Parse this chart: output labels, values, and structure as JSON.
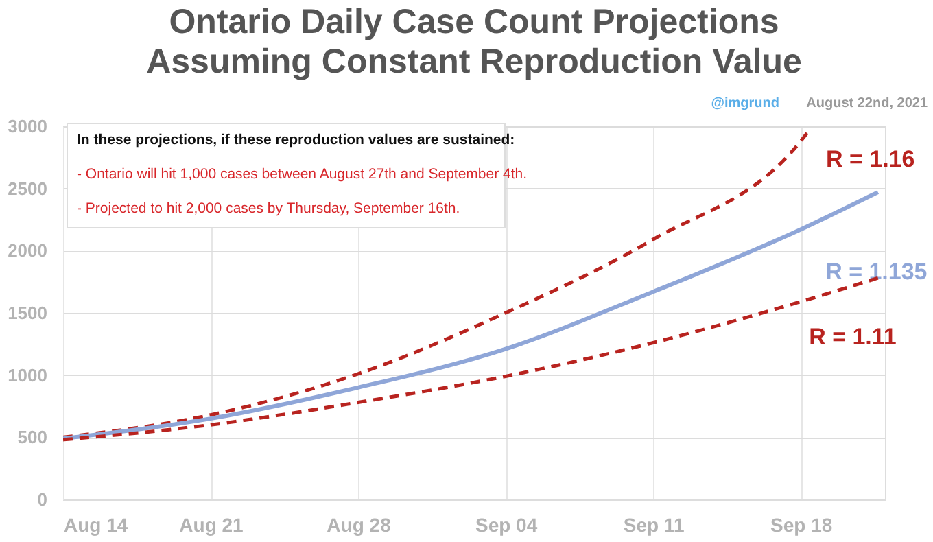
{
  "chart_data": {
    "type": "line",
    "title": [
      "Ontario Daily Case Count Projections",
      "Assuming Constant Reproduction Value"
    ],
    "annotations": [
      "In these projections, if these reproduction values are sustained:",
      "- Ontario will hit 1,000 cases between August 27th and September 4th.",
      "- Projected to hit 2,000 cases by Thursday, September 16th.",
      "@imgrund",
      "August 22nd, 2021"
    ],
    "xlim": [
      "2021-08-14",
      "2021-09-22"
    ],
    "xticks": [
      {
        "value": "2021-08-14",
        "label": "Aug 14"
      },
      {
        "value": "2021-08-21",
        "label": "Aug 21"
      },
      {
        "value": "2021-08-28",
        "label": "Aug 28"
      },
      {
        "value": "2021-09-04",
        "label": "Sep 04"
      },
      {
        "value": "2021-09-11",
        "label": "Sep 11"
      },
      {
        "value": "2021-09-18",
        "label": "Sep 18"
      }
    ],
    "ylim": [
      0,
      3000
    ],
    "yticks": [
      0,
      500,
      1000,
      1500,
      2000,
      2500,
      3000
    ],
    "grid": true,
    "marker": "none",
    "series": [
      {
        "name": "R = 1.16",
        "color": "#b8231f",
        "line_style": "dashed",
        "x": [
          "2021-08-14",
          "2021-08-21",
          "2021-08-28",
          "2021-09-04",
          "2021-09-11",
          "2021-09-18",
          "2021-09-18T10:00"
        ],
        "values": [
          500,
          680,
          1010,
          1500,
          2090,
          2880,
          2970
        ]
      },
      {
        "name": "R = 1.135",
        "color": "#8fa6d8",
        "line_style": "solid",
        "x": [
          "2021-08-14",
          "2021-08-21",
          "2021-08-28",
          "2021-09-04",
          "2021-09-11",
          "2021-09-18",
          "2021-09-21T16:00"
        ],
        "values": [
          490,
          650,
          900,
          1210,
          1670,
          2170,
          2470
        ]
      },
      {
        "name": "R = 1.11",
        "color": "#b8231f",
        "line_style": "dashed",
        "x": [
          "2021-08-14",
          "2021-08-21",
          "2021-08-28",
          "2021-09-04",
          "2021-09-11",
          "2021-09-18",
          "2021-09-21T16:00"
        ],
        "values": [
          480,
          600,
          780,
          990,
          1260,
          1590,
          1780
        ]
      }
    ]
  }
}
